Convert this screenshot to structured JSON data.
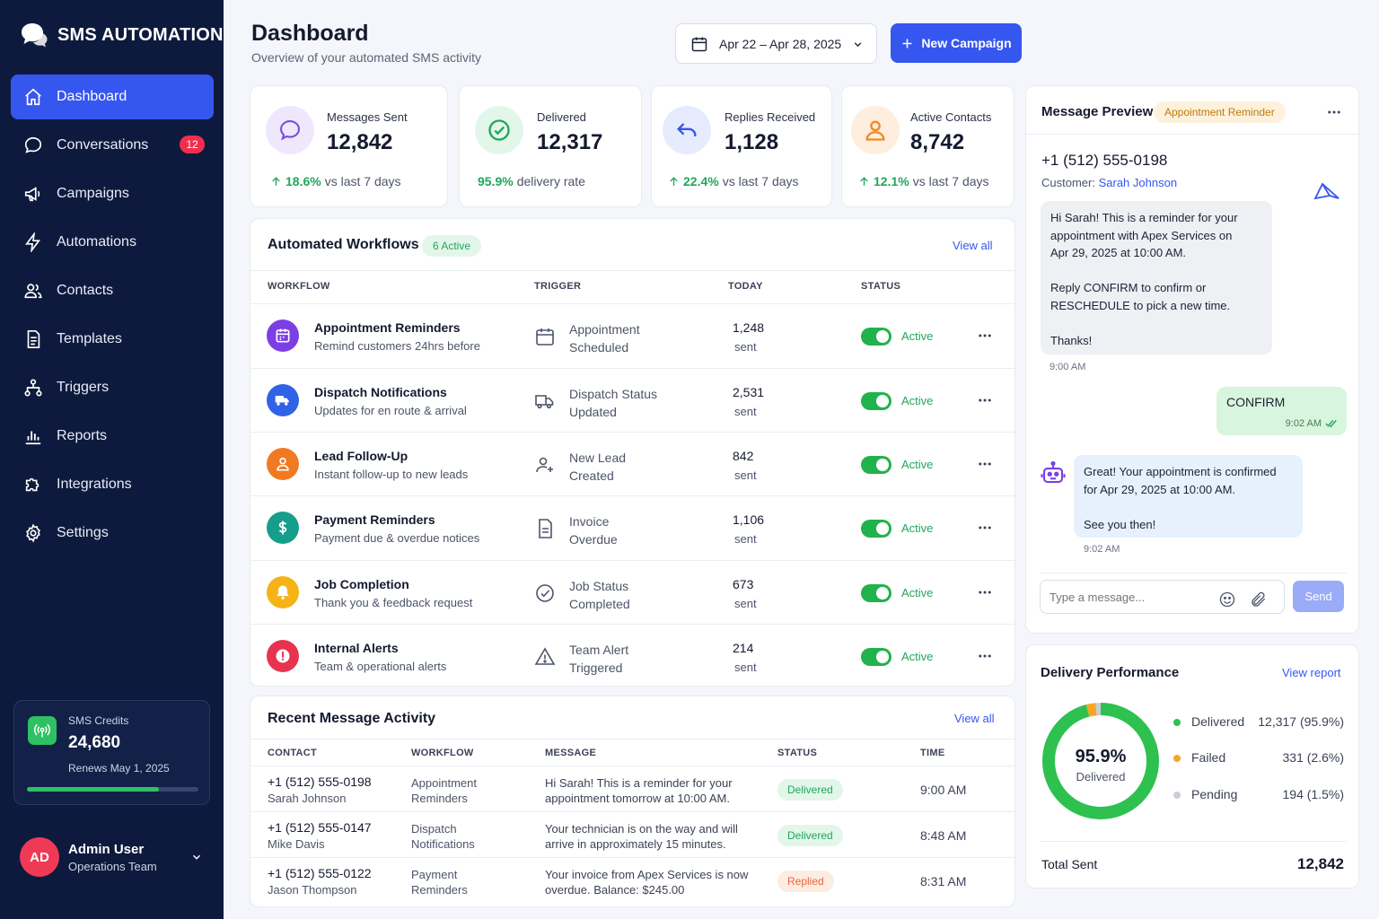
{
  "brand": {
    "name": "SMS AUTOMATION"
  },
  "sidebar": {
    "items": [
      {
        "label": "Dashboard",
        "icon": "home-icon"
      },
      {
        "label": "Conversations",
        "icon": "chat-icon",
        "badge": "12"
      },
      {
        "label": "Campaigns",
        "icon": "megaphone-icon"
      },
      {
        "label": "Automations",
        "icon": "bolt-icon"
      },
      {
        "label": "Contacts",
        "icon": "users-icon"
      },
      {
        "label": "Templates",
        "icon": "document-icon"
      },
      {
        "label": "Triggers",
        "icon": "hierarchy-icon"
      },
      {
        "label": "Reports",
        "icon": "bar-chart-icon"
      },
      {
        "label": "Integrations",
        "icon": "puzzle-icon"
      },
      {
        "label": "Settings",
        "icon": "gear-icon"
      }
    ],
    "credits": {
      "label": "SMS Credits",
      "value": "24,680",
      "renews": "Renews May 1, 2025",
      "progress": 0.77
    },
    "user": {
      "initials": "AD",
      "name": "Admin User",
      "role": "Operations Team"
    }
  },
  "header": {
    "title": "Dashboard",
    "subtitle": "Overview of your automated SMS activity",
    "date_range": "Apr 22  –  Apr 28, 2025",
    "new_campaign": "New Campaign"
  },
  "stats": [
    {
      "label": "Messages Sent",
      "value": "12,842",
      "delta": "18.6%",
      "suffix": "vs last 7 days",
      "color": "#7b4ce0"
    },
    {
      "label": "Delivered",
      "value": "12,317",
      "delta": "95.9%",
      "suffix": "delivery rate",
      "color": "#22a65a"
    },
    {
      "label": "Replies Received",
      "value": "1,128",
      "delta": "22.4%",
      "suffix": "vs last 7 days",
      "color": "#3656f0"
    },
    {
      "label": "Active Contacts",
      "value": "8,742",
      "delta": "12.1%",
      "suffix": "vs last 7 days",
      "color": "#f08a24"
    }
  ],
  "workflows": {
    "title": "Automated Workflows",
    "badge": "6 Active",
    "view_all": "View all",
    "columns": [
      "WORKFLOW",
      "TRIGGER",
      "TODAY",
      "STATUS"
    ],
    "rows": [
      {
        "name": "Appointment Reminders",
        "desc": "Remind customers 24hrs before",
        "trigger1": "Appointment",
        "trigger2": "Scheduled",
        "today": "1,248",
        "unit": "sent",
        "status": "Active",
        "color": "#7b3fe4",
        "icon": "calendar-icon",
        "ticon": "calendar-outline-icon"
      },
      {
        "name": "Dispatch Notifications",
        "desc": "Updates for en route & arrival",
        "trigger1": "Dispatch Status",
        "trigger2": "Updated",
        "today": "2,531",
        "unit": "sent",
        "status": "Active",
        "color": "#2f62e6",
        "icon": "truck-icon",
        "ticon": "truck-outline-icon"
      },
      {
        "name": "Lead Follow-Up",
        "desc": "Instant follow-up to new leads",
        "trigger1": "New Lead",
        "trigger2": "Created",
        "today": "842",
        "unit": "sent",
        "status": "Active",
        "color": "#f07a22",
        "icon": "person-icon",
        "ticon": "add-person-icon"
      },
      {
        "name": "Payment Reminders",
        "desc": "Payment due & overdue notices",
        "trigger1": "Invoice",
        "trigger2": "Overdue",
        "today": "1,106",
        "unit": "sent",
        "status": "Active",
        "color": "#169e8c",
        "icon": "dollar-icon",
        "ticon": "invoice-icon"
      },
      {
        "name": "Job Completion",
        "desc": "Thank you & feedback request",
        "trigger1": "Job Status",
        "trigger2": "Completed",
        "today": "673",
        "unit": "sent",
        "status": "Active",
        "color": "#f5b316",
        "icon": "bell-icon",
        "ticon": "check-circle-icon"
      },
      {
        "name": "Internal Alerts",
        "desc": "Team & operational alerts",
        "trigger1": "Team Alert",
        "trigger2": "Triggered",
        "today": "214",
        "unit": "sent",
        "status": "Active",
        "color": "#e8334f",
        "icon": "alert-icon",
        "ticon": "warning-icon"
      }
    ]
  },
  "activity": {
    "title": "Recent Message Activity",
    "view_all": "View all",
    "columns": [
      "CONTACT",
      "WORKFLOW",
      "MESSAGE",
      "STATUS",
      "TIME"
    ],
    "rows": [
      {
        "phone": "+1 (512) 555-0198",
        "name": "Sarah Johnson",
        "wf1": "Appointment",
        "wf2": "Reminders",
        "msg1": "Hi Sarah! This is a reminder for your",
        "msg2": "appointment tomorrow at 10:00 AM.",
        "status": "Delivered",
        "time": "9:00 AM"
      },
      {
        "phone": "+1 (512) 555-0147",
        "name": "Mike Davis",
        "wf1": "Dispatch",
        "wf2": "Notifications",
        "msg1": "Your technician is on the way and will",
        "msg2": "arrive in approximately 15 minutes.",
        "status": "Delivered",
        "time": "8:48 AM"
      },
      {
        "phone": "+1 (512) 555-0122",
        "name": "Jason Thompson",
        "wf1": "Payment",
        "wf2": "Reminders",
        "msg1": "Your invoice from Apex Services is now",
        "msg2": "overdue. Balance: $245.00",
        "status": "Replied",
        "time": "8:31 AM"
      }
    ]
  },
  "preview": {
    "title": "Message Preview",
    "tag": "Appointment Reminder",
    "phone": "+1 (512) 555-0198",
    "customer_label": "Customer:",
    "customer_name": "Sarah Johnson",
    "msg_in": "Hi Sarah! This is a reminder for your\nappointment with Apex Services on\nApr 29, 2025 at 10:00 AM.\n\nReply CONFIRM to confirm or\nRESCHEDULE to pick a new time.\n\nThanks!",
    "msg_in_time": "9:00 AM",
    "msg_out": "CONFIRM",
    "msg_out_time": "9:02 AM",
    "msg_bot": "Great! Your appointment is confirmed\nfor Apr 29, 2025 at 10:00 AM.\n\nSee you then!",
    "msg_bot_time": "9:02 AM",
    "input_placeholder": "Type a message...",
    "send": "Send"
  },
  "delivery": {
    "title": "Delivery Performance",
    "view_report": "View report",
    "center_value": "95.9%",
    "center_label": "Delivered",
    "legend": [
      {
        "label": "Delivered",
        "value": "12,317 (95.9%)",
        "color": "#2ec14f",
        "fraction": 0.959
      },
      {
        "label": "Failed",
        "value": "331 (2.6%)",
        "color": "#f5a623",
        "fraction": 0.026
      },
      {
        "label": "Pending",
        "value": "194  (1.5%)",
        "color": "#c9ced8",
        "fraction": 0.015
      }
    ],
    "total_label": "Total Sent",
    "total_value": "12,842"
  }
}
